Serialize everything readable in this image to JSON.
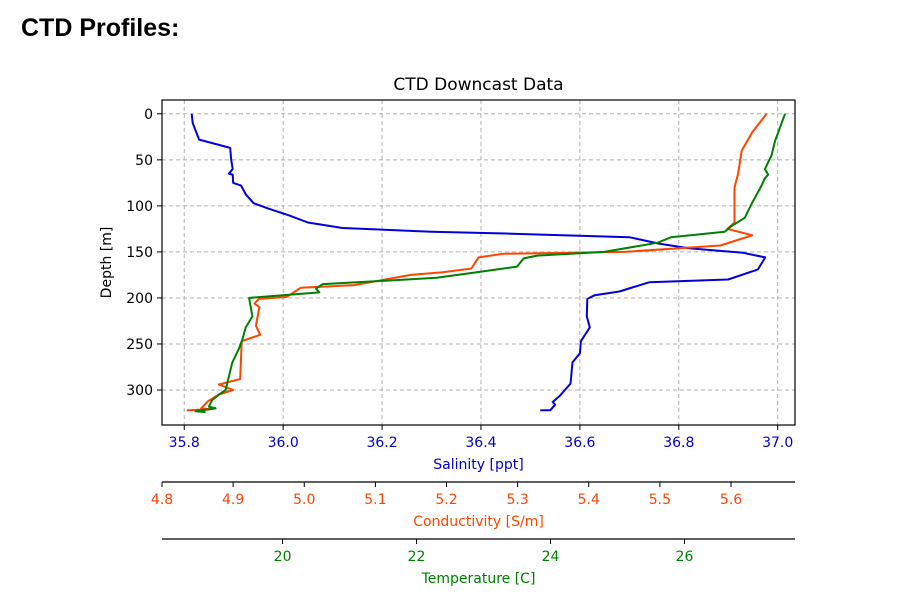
{
  "page": {
    "heading": "CTD Profiles:"
  },
  "chart_data": {
    "type": "line",
    "title": "CTD Downcast Data",
    "ylabel": "Depth [m]",
    "ylim": [
      338,
      -15
    ],
    "y_inverted": true,
    "yticks": [
      0,
      50,
      100,
      150,
      200,
      250,
      300
    ],
    "grid": true,
    "axes": [
      {
        "name": "salinity",
        "label": "Salinity [ppt]",
        "color": "#0000cc",
        "range": [
          35.755,
          37.035
        ],
        "ticks": [
          35.8,
          36.0,
          36.2,
          36.4,
          36.6,
          36.8,
          37.0
        ],
        "tick_labels": [
          "35.8",
          "36.0",
          "36.2",
          "36.4",
          "36.6",
          "36.8",
          "37.0"
        ]
      },
      {
        "name": "conductivity",
        "label": "Conductivity [S/m]",
        "color": "#ff4500",
        "range": [
          4.8,
          5.69
        ],
        "ticks": [
          4.8,
          4.9,
          5.0,
          5.1,
          5.2,
          5.3,
          5.4,
          5.5,
          5.6
        ],
        "tick_labels": [
          "4.8",
          "4.9",
          "5.0",
          "5.1",
          "5.2",
          "5.3",
          "5.4",
          "5.5",
          "5.6"
        ]
      },
      {
        "name": "temperature",
        "label": "Temperature [C]",
        "color": "#008000",
        "range": [
          18.2,
          27.65
        ],
        "ticks": [
          20,
          22,
          24,
          26
        ],
        "tick_labels": [
          "20",
          "22",
          "24",
          "26"
        ]
      }
    ],
    "series": [
      {
        "axis": "salinity",
        "color": "#0000dd",
        "points": [
          [
            35.815,
            0
          ],
          [
            35.817,
            10
          ],
          [
            35.83,
            28
          ],
          [
            35.893,
            37
          ],
          [
            35.895,
            50
          ],
          [
            35.898,
            60
          ],
          [
            35.89,
            65
          ],
          [
            35.898,
            66
          ],
          [
            35.899,
            75
          ],
          [
            35.915,
            78
          ],
          [
            35.925,
            88
          ],
          [
            35.94,
            97
          ],
          [
            35.97,
            103
          ],
          [
            36.01,
            110
          ],
          [
            36.05,
            118
          ],
          [
            36.12,
            124
          ],
          [
            36.3,
            128
          ],
          [
            36.45,
            130
          ],
          [
            36.7,
            134
          ],
          [
            36.76,
            141
          ],
          [
            36.82,
            146
          ],
          [
            36.93,
            151
          ],
          [
            36.975,
            156
          ],
          [
            36.96,
            169
          ],
          [
            36.9,
            180
          ],
          [
            36.74,
            183
          ],
          [
            36.68,
            193
          ],
          [
            36.63,
            197
          ],
          [
            36.615,
            201
          ],
          [
            36.614,
            220
          ],
          [
            36.62,
            232
          ],
          [
            36.602,
            247
          ],
          [
            36.6,
            260
          ],
          [
            36.585,
            270
          ],
          [
            36.581,
            293
          ],
          [
            36.568,
            301
          ],
          [
            36.56,
            306
          ],
          [
            36.545,
            313
          ],
          [
            36.55,
            316
          ],
          [
            36.54,
            322
          ],
          [
            36.52,
            322
          ]
        ]
      },
      {
        "axis": "conductivity",
        "color": "#ff4500",
        "points": [
          [
            5.65,
            0
          ],
          [
            5.63,
            20
          ],
          [
            5.615,
            40
          ],
          [
            5.61,
            65
          ],
          [
            5.605,
            80
          ],
          [
            5.605,
            118
          ],
          [
            5.595,
            125
          ],
          [
            5.63,
            132
          ],
          [
            5.585,
            143
          ],
          [
            5.45,
            150
          ],
          [
            5.28,
            152
          ],
          [
            5.245,
            156
          ],
          [
            5.235,
            168
          ],
          [
            5.195,
            172
          ],
          [
            5.15,
            175
          ],
          [
            5.07,
            186
          ],
          [
            4.995,
            189
          ],
          [
            4.975,
            199
          ],
          [
            4.936,
            201
          ],
          [
            4.93,
            206
          ],
          [
            4.937,
            210
          ],
          [
            4.932,
            230
          ],
          [
            4.938,
            240
          ],
          [
            4.912,
            247
          ],
          [
            4.91,
            288
          ],
          [
            4.88,
            294
          ],
          [
            4.9,
            300
          ],
          [
            4.88,
            305
          ],
          [
            4.865,
            312
          ],
          [
            4.855,
            320
          ],
          [
            4.868,
            321
          ],
          [
            4.835,
            322
          ]
        ]
      },
      {
        "axis": "temperature",
        "color": "#008000",
        "points": [
          [
            27.5,
            0
          ],
          [
            27.4,
            20
          ],
          [
            27.35,
            30
          ],
          [
            27.3,
            45
          ],
          [
            27.2,
            60
          ],
          [
            27.25,
            66
          ],
          [
            27.2,
            70
          ],
          [
            27.15,
            78
          ],
          [
            27.0,
            98
          ],
          [
            26.9,
            113
          ],
          [
            26.7,
            122
          ],
          [
            26.6,
            128
          ],
          [
            25.8,
            134
          ],
          [
            25.6,
            140
          ],
          [
            24.8,
            150
          ],
          [
            23.8,
            154
          ],
          [
            23.6,
            157
          ],
          [
            23.5,
            166
          ],
          [
            22.9,
            172
          ],
          [
            22.3,
            178
          ],
          [
            21.6,
            181
          ],
          [
            20.6,
            185
          ],
          [
            20.5,
            190
          ],
          [
            20.55,
            194
          ],
          [
            19.5,
            200
          ],
          [
            19.55,
            220
          ],
          [
            19.45,
            232
          ],
          [
            19.4,
            245
          ],
          [
            19.35,
            255
          ],
          [
            19.25,
            270
          ],
          [
            19.2,
            285
          ],
          [
            19.15,
            300
          ],
          [
            19.05,
            305
          ],
          [
            18.95,
            311
          ],
          [
            18.9,
            318
          ],
          [
            19.0,
            320
          ],
          [
            18.7,
            323
          ],
          [
            18.85,
            324
          ]
        ]
      }
    ]
  }
}
